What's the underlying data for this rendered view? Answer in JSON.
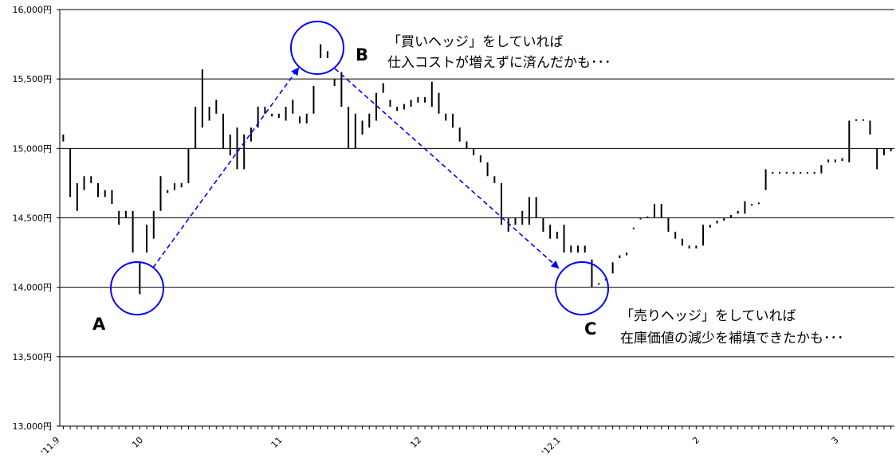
{
  "chart_data": {
    "type": "range-bar",
    "color": "#000000",
    "categories": [
      "'11.9",
      null,
      null,
      null,
      null,
      null,
      null,
      null,
      null,
      null,
      null,
      null,
      "10",
      null,
      null,
      null,
      null,
      null,
      null,
      null,
      null,
      null,
      null,
      null,
      null,
      null,
      null,
      null,
      null,
      null,
      null,
      null,
      "11",
      null,
      null,
      null,
      null,
      null,
      null,
      null,
      null,
      null,
      null,
      null,
      null,
      null,
      null,
      null,
      null,
      null,
      null,
      null,
      "12",
      null,
      null,
      null,
      null,
      null,
      null,
      null,
      null,
      null,
      null,
      null,
      null,
      null,
      null,
      null,
      null,
      null,
      null,
      null,
      "'12.1",
      null,
      null,
      null,
      null,
      null,
      null,
      null,
      null,
      null,
      null,
      null,
      null,
      null,
      null,
      null,
      null,
      null,
      null,
      null,
      "2",
      null,
      null,
      null,
      null,
      null,
      null,
      null,
      null,
      null,
      null,
      null,
      null,
      null,
      null,
      null,
      null,
      null,
      null,
      null,
      "3",
      null,
      null,
      null,
      null,
      null,
      null,
      null
    ],
    "high": [
      15100,
      15000,
      14750,
      14800,
      14800,
      14750,
      14700,
      14700,
      14550,
      14550,
      14550,
      14180,
      14450,
      14550,
      14800,
      14700,
      14750,
      14750,
      15000,
      15300,
      15570,
      15300,
      15350,
      15250,
      15100,
      15150,
      15100,
      15150,
      15300,
      15300,
      15250,
      15250,
      15300,
      15350,
      15230,
      15250,
      15450,
      15750,
      15700,
      15500,
      15550,
      15300,
      15250,
      15200,
      15250,
      15400,
      15470,
      15350,
      15300,
      15320,
      15350,
      15370,
      15370,
      15480,
      15400,
      15250,
      15250,
      15150,
      15050,
      15000,
      14950,
      14900,
      14800,
      14750,
      14500,
      14500,
      14550,
      14650,
      14650,
      14500,
      14450,
      14400,
      14450,
      14300,
      14300,
      14300,
      14200,
      14030,
      14060,
      14180,
      14230,
      14250,
      14430,
      14500,
      14510,
      14600,
      14600,
      14500,
      14400,
      14350,
      14300,
      14300,
      14450,
      14450,
      14480,
      14500,
      14520,
      14550,
      14620,
      14600,
      14610,
      14850,
      14830,
      14830,
      14830,
      14830,
      14830,
      14830,
      14830,
      14880,
      14920,
      14920,
      14930,
      15200,
      15210,
      15210,
      15200,
      15000,
      15000,
      15000
    ],
    "low": [
      15050,
      14650,
      14550,
      14700,
      14750,
      14650,
      14650,
      14600,
      14450,
      14500,
      14250,
      13950,
      14250,
      14350,
      14550,
      14680,
      14700,
      14720,
      14750,
      15000,
      15150,
      15200,
      15250,
      15000,
      14950,
      14850,
      14850,
      15050,
      15150,
      15250,
      15230,
      15220,
      15200,
      15250,
      15180,
      15180,
      15250,
      15650,
      15650,
      15450,
      15300,
      15000,
      15000,
      15100,
      15150,
      15200,
      15400,
      15300,
      15270,
      15280,
      15300,
      15330,
      15330,
      15300,
      15250,
      15200,
      15150,
      15050,
      15000,
      14950,
      14900,
      14800,
      14750,
      14450,
      14400,
      14450,
      14450,
      14450,
      14500,
      14400,
      14350,
      14350,
      14250,
      14250,
      14250,
      14250,
      14000,
      14020,
      14050,
      14100,
      14210,
      14230,
      14420,
      14490,
      14500,
      14500,
      14500,
      14400,
      14350,
      14300,
      14280,
      14280,
      14300,
      14430,
      14460,
      14480,
      14500,
      14530,
      14530,
      14590,
      14600,
      14700,
      14820,
      14820,
      14820,
      14820,
      14820,
      14820,
      14820,
      14820,
      14900,
      14900,
      14910,
      14900,
      15200,
      15200,
      15100,
      14850,
      14950,
      14980
    ],
    "ylim": [
      13000,
      16000
    ],
    "yticks": [
      {
        "value": 13000,
        "label": "13,000円"
      },
      {
        "value": 13500,
        "label": "13,500円"
      },
      {
        "value": 14000,
        "label": "14,000円"
      },
      {
        "value": 14500,
        "label": "14,500円"
      },
      {
        "value": 15000,
        "label": "15,000円"
      },
      {
        "value": 15500,
        "label": "15,500円"
      },
      {
        "value": 16000,
        "label": "16,000円"
      }
    ],
    "grid": true,
    "annotations": [
      "A",
      "B",
      "C",
      "「買いヘッジ」をしていれば",
      "仕入コストが増えずに済んだかも･･･",
      "「売りヘッジ」をしていれば",
      "在庫価値の減少を補填できたかも･･･"
    ]
  }
}
